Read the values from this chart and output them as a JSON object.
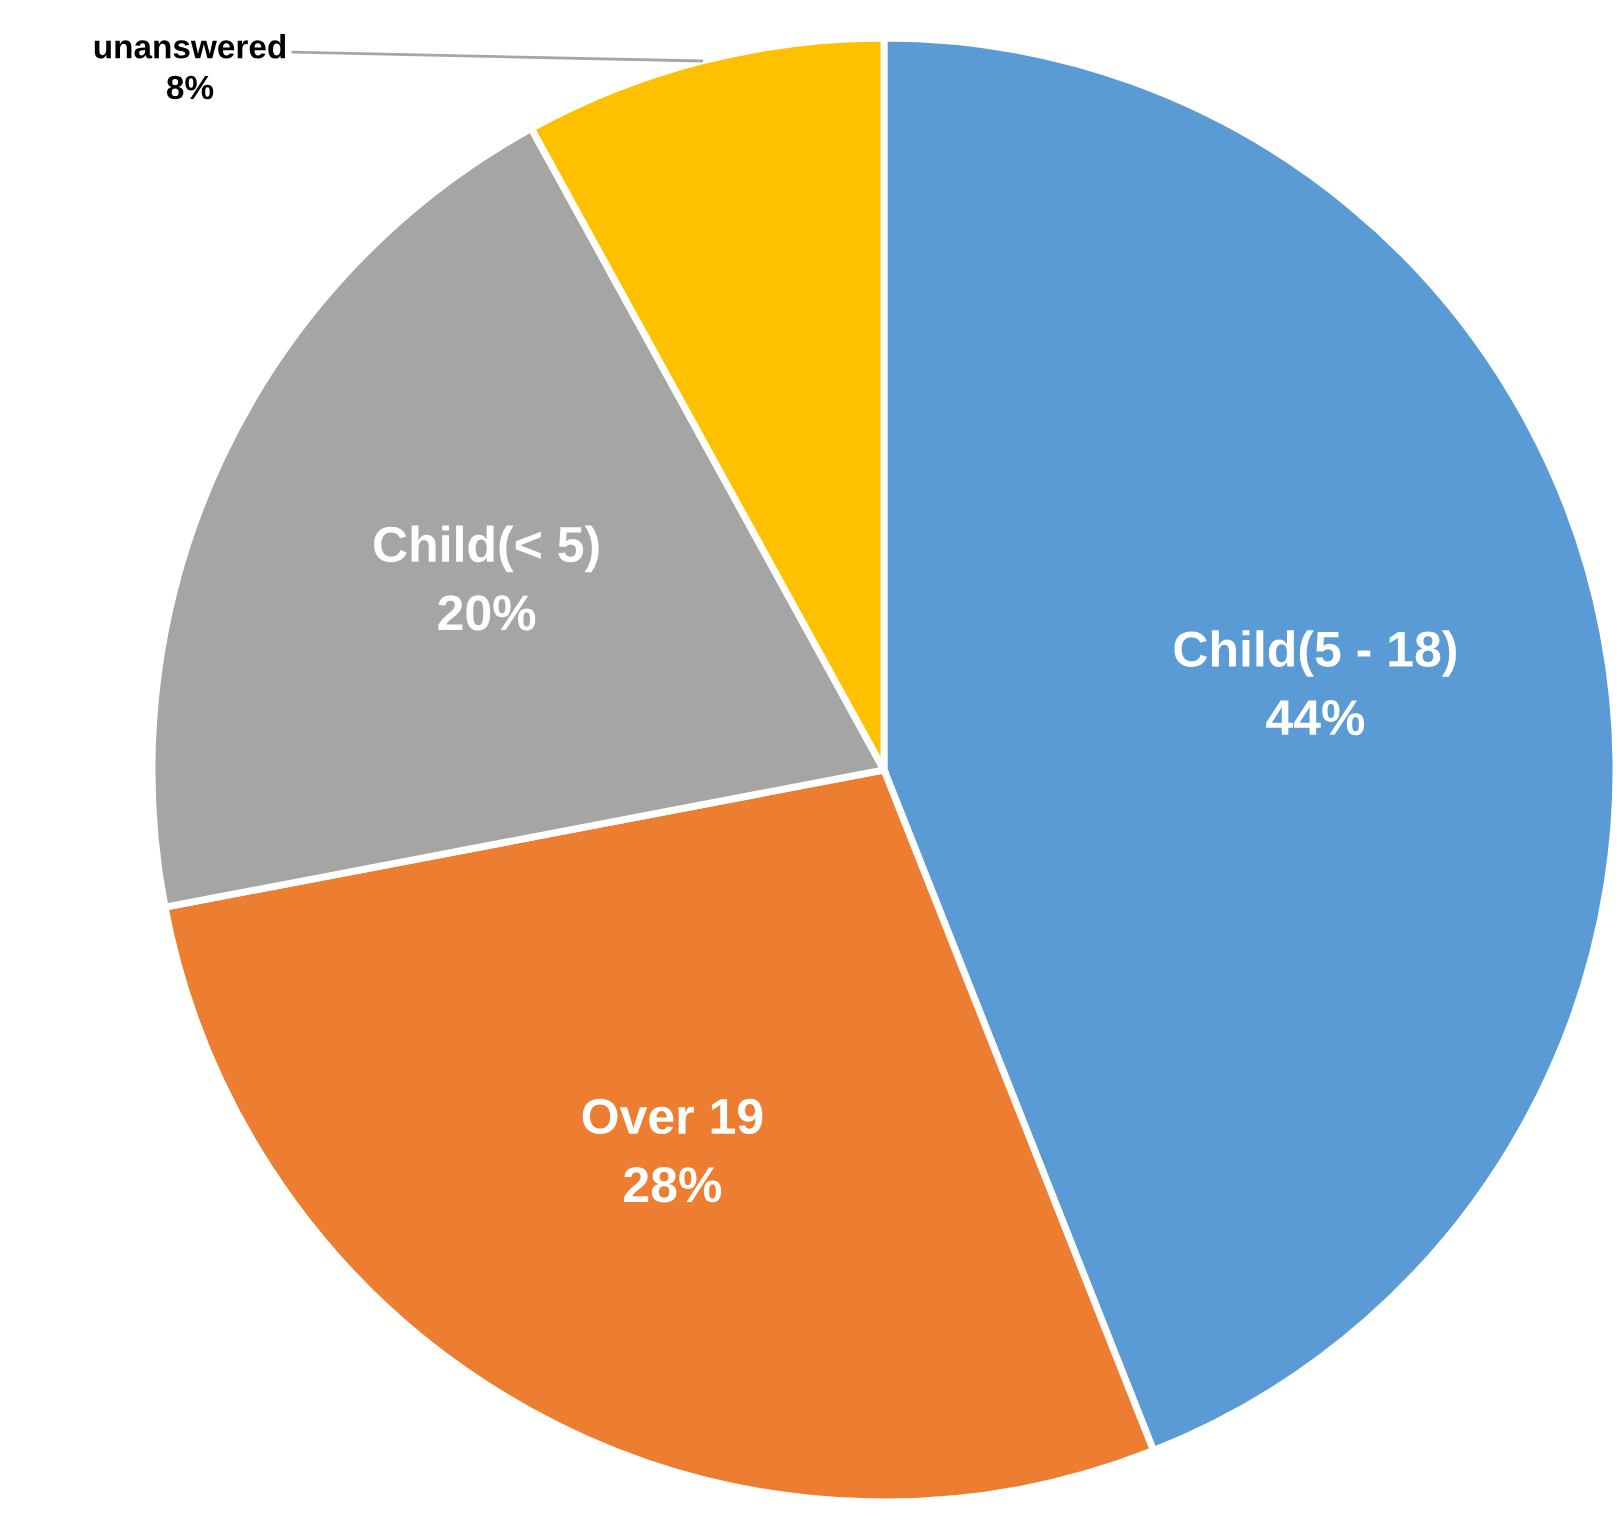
{
  "chart_data": {
    "type": "pie",
    "categories": [
      "Child(5 - 18)",
      "Over 19",
      "Child(< 5)",
      "unanswered"
    ],
    "values": [
      44,
      28,
      20,
      8
    ],
    "value_labels": [
      "44%",
      "28%",
      "20%",
      "8%"
    ],
    "colors": [
      "#5b9bd5",
      "#ed7d31",
      "#a5a5a5",
      "#ffc000"
    ],
    "legend": false
  }
}
